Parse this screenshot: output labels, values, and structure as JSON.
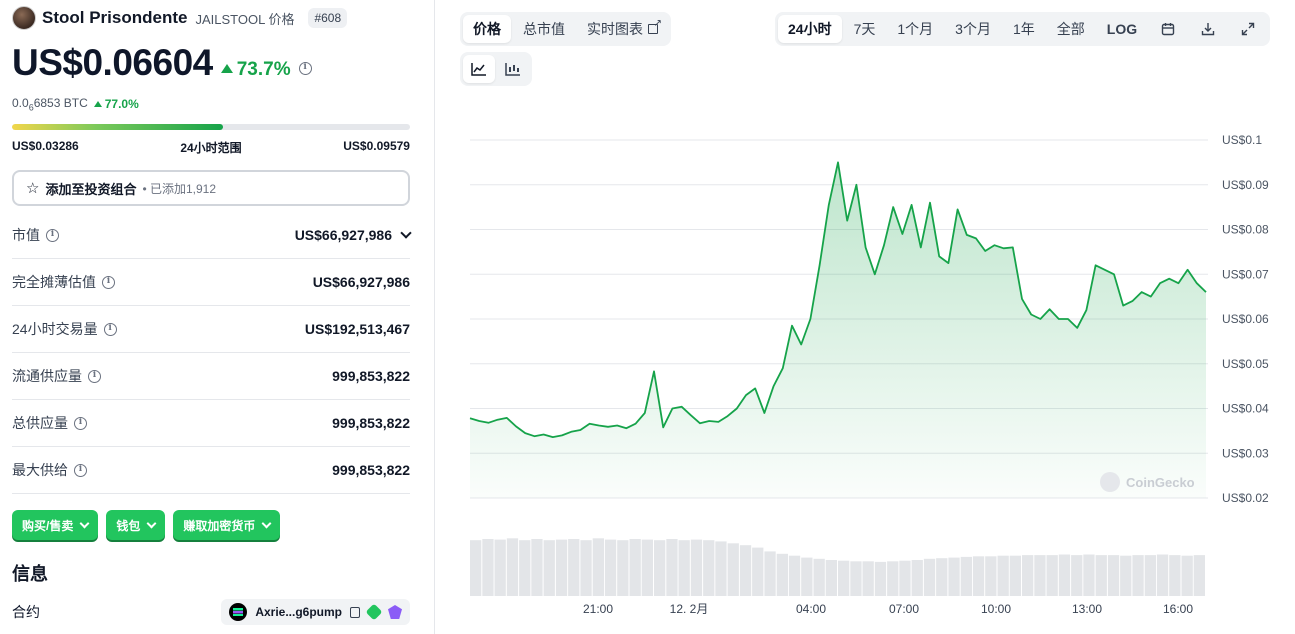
{
  "coin": {
    "name": "Stool Prisondente",
    "symbol_label": "JAILSTOOL 价格",
    "rank": "#608",
    "price": "US$0.06604",
    "change_24h": "73.7%",
    "btc_price_main": "0.0",
    "btc_price_sub": "6",
    "btc_price_rest": "6853 BTC",
    "btc_change": "77.0%"
  },
  "range": {
    "low": "US$0.03286",
    "label": "24小时范围",
    "high": "US$0.09579",
    "fill_fraction": 0.53
  },
  "portfolio": {
    "label": "添加至投资组合",
    "added": "• 已添加1,912"
  },
  "stats": [
    {
      "label": "市值",
      "value": "US$66,927,986"
    },
    {
      "label": "完全摊薄估值",
      "value": "US$66,927,986"
    },
    {
      "label": "24小时交易量",
      "value": "US$192,513,467"
    },
    {
      "label": "流通供应量",
      "value": "999,853,822"
    },
    {
      "label": "总供应量",
      "value": "999,853,822"
    },
    {
      "label": "最大供给",
      "value": "999,853,822"
    }
  ],
  "actions": [
    "购买/售卖",
    "钱包",
    "赚取加密货币"
  ],
  "info": {
    "title": "信息",
    "contract_label": "合约",
    "contract_value": "Axrie...g6pump"
  },
  "tabs": {
    "items": [
      "价格",
      "总市值",
      "实时图表"
    ],
    "active": 0
  },
  "timeframes": {
    "items": [
      "24小时",
      "7天",
      "1个月",
      "3个月",
      "1年",
      "全部",
      "LOG"
    ],
    "active": 0
  },
  "colors": {
    "accent_green": "#16a34a",
    "button_green": "#22c55e",
    "line_green": "#16a34a"
  },
  "watermark": "CoinGecko",
  "chart_data": {
    "type": "area",
    "title": "",
    "xlabel": "",
    "ylabel": "",
    "x_ticks": [
      "21:00",
      "12. 2月",
      "04:00",
      "07:00",
      "10:00",
      "13:00",
      "16:00"
    ],
    "y_ticks": [
      "US$0.02",
      "US$0.03",
      "US$0.04",
      "US$0.05",
      "US$0.06",
      "US$0.07",
      "US$0.08",
      "US$0.09",
      "US$0.1"
    ],
    "ylim": [
      0.02,
      0.1
    ],
    "grid": true,
    "series": [
      {
        "values": [
          0.0378,
          0.0372,
          0.0368,
          0.0375,
          0.0379,
          0.036,
          0.0345,
          0.0338,
          0.0342,
          0.0336,
          0.034,
          0.0348,
          0.0352,
          0.0366,
          0.0362,
          0.0359,
          0.0362,
          0.0356,
          0.0366,
          0.039,
          0.0483,
          0.0358,
          0.04,
          0.0404,
          0.0385,
          0.0367,
          0.0372,
          0.037,
          0.0383,
          0.04,
          0.043,
          0.0445,
          0.039,
          0.045,
          0.049,
          0.0585,
          0.0543,
          0.06,
          0.072,
          0.0855,
          0.095,
          0.082,
          0.09,
          0.076,
          0.07,
          0.0765,
          0.085,
          0.079,
          0.0855,
          0.076,
          0.086,
          0.074,
          0.0725,
          0.0845,
          0.0788,
          0.078,
          0.0752,
          0.0765,
          0.0758,
          0.076,
          0.0645,
          0.061,
          0.06,
          0.0622,
          0.06,
          0.06,
          0.058,
          0.062,
          0.072,
          0.071,
          0.07,
          0.063,
          0.064,
          0.066,
          0.065,
          0.068,
          0.069,
          0.068,
          0.071,
          0.068,
          0.066
        ]
      }
    ],
    "volume": {
      "relative": [
        0.9,
        0.92,
        0.91,
        0.93,
        0.9,
        0.92,
        0.9,
        0.91,
        0.92,
        0.9,
        0.93,
        0.91,
        0.9,
        0.92,
        0.91,
        0.9,
        0.92,
        0.9,
        0.91,
        0.9,
        0.88,
        0.85,
        0.82,
        0.78,
        0.72,
        0.68,
        0.65,
        0.62,
        0.6,
        0.58,
        0.57,
        0.56,
        0.56,
        0.55,
        0.56,
        0.57,
        0.58,
        0.6,
        0.61,
        0.62,
        0.63,
        0.64,
        0.64,
        0.65,
        0.65,
        0.66,
        0.66,
        0.66,
        0.67,
        0.66,
        0.67,
        0.66,
        0.66,
        0.65,
        0.66,
        0.66,
        0.67,
        0.66,
        0.65,
        0.66
      ]
    }
  }
}
